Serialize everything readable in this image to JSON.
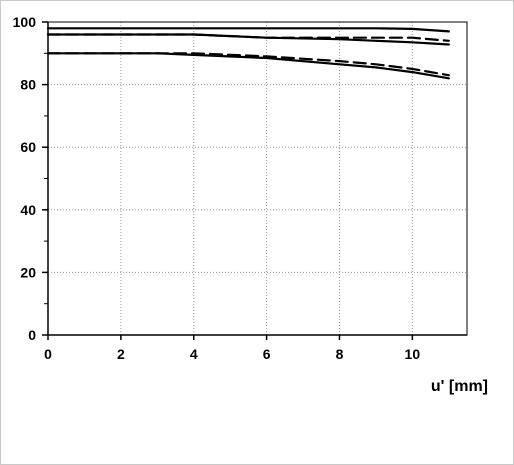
{
  "chart_data": {
    "type": "line",
    "xlabel": "u' [mm]",
    "ylabel": "",
    "xlim": [
      0,
      11.5
    ],
    "ylim": [
      0,
      100
    ],
    "xticks": [
      0,
      2,
      4,
      6,
      8,
      10
    ],
    "yticks": [
      0,
      20,
      40,
      60,
      80,
      100
    ],
    "grid": true,
    "series": [
      {
        "style": "solid",
        "x": [
          0,
          2,
          4,
          6,
          8,
          9,
          10,
          11
        ],
        "y": [
          98,
          98,
          98,
          98,
          98,
          98,
          97.8,
          97
        ]
      },
      {
        "style": "dashed",
        "x": [
          0,
          2,
          4,
          6,
          8,
          9,
          10,
          11
        ],
        "y": [
          96,
          96,
          96,
          95,
          95,
          95,
          95,
          94
        ]
      },
      {
        "style": "solid",
        "x": [
          0,
          2,
          4,
          6,
          8,
          9,
          10,
          11
        ],
        "y": [
          96,
          96,
          96,
          95,
          94.5,
          94,
          93.5,
          92.8
        ]
      },
      {
        "style": "dashed",
        "x": [
          0,
          2,
          3,
          4,
          6,
          8,
          9,
          10,
          11
        ],
        "y": [
          90,
          90,
          90,
          90,
          89,
          87.5,
          86.5,
          85,
          83
        ]
      },
      {
        "style": "solid",
        "x": [
          0,
          2,
          3,
          4,
          6,
          8,
          9,
          10,
          11
        ],
        "y": [
          90,
          90,
          90,
          89.5,
          88.5,
          86.5,
          85.5,
          84,
          82
        ]
      }
    ]
  }
}
